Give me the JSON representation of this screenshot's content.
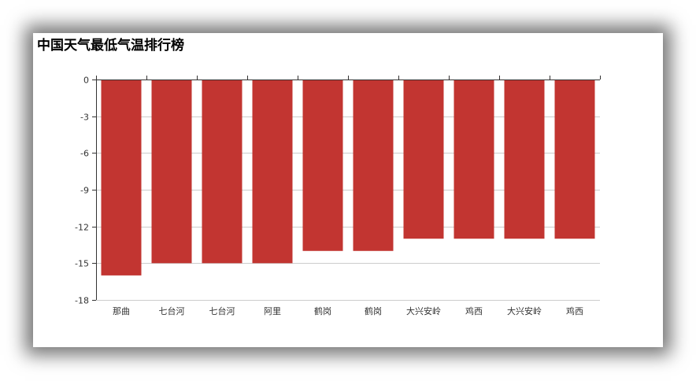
{
  "chart_data": {
    "type": "bar",
    "title": "中国天气最低气温排行榜",
    "categories": [
      "那曲",
      "七台河",
      "七台河",
      "阿里",
      "鹤岗",
      "鹤岗",
      "大兴安岭",
      "鸡西",
      "大兴安岭",
      "鸡西"
    ],
    "series": [
      {
        "values": [
          -16,
          -15,
          -15,
          -15,
          -14,
          -14,
          -13,
          -13,
          -13,
          -13
        ]
      }
    ],
    "ylim": [
      -18,
      0
    ],
    "yticks": [
      0,
      -3,
      -6,
      -9,
      -12,
      -15,
      -18
    ],
    "xlabel": "",
    "ylabel": "",
    "grid": true,
    "bar_color": "#c23531"
  }
}
